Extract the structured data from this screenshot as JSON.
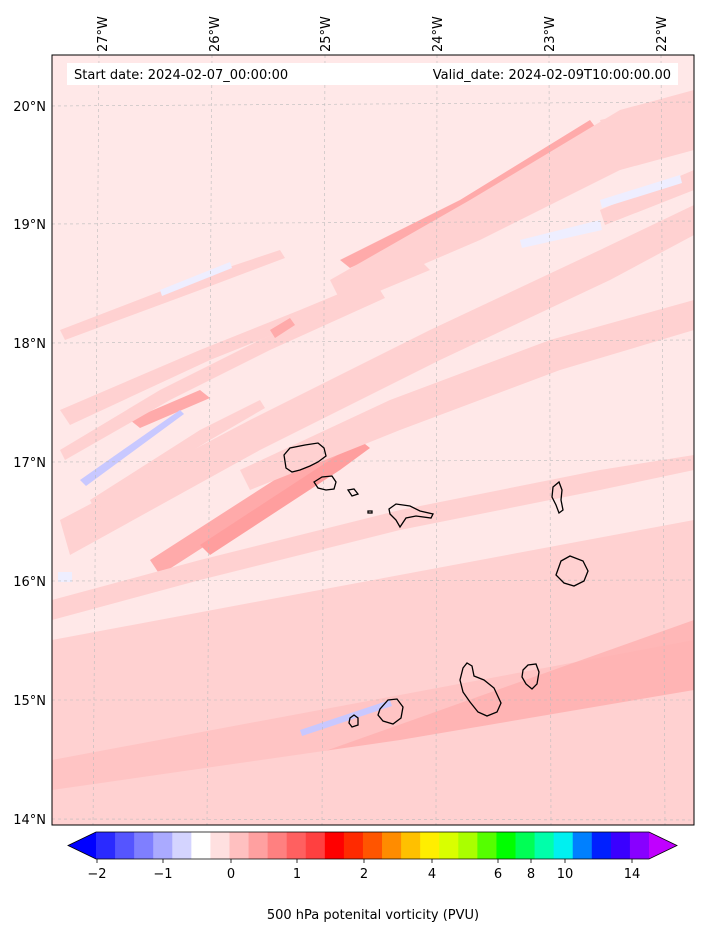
{
  "map": {
    "start_date": "Start date: 2024-02-07_00:00:00",
    "valid_date": "Valid_date: 2024-02-09T10:00:00.00",
    "lon_labels": [
      "27°W",
      "26°W",
      "25°W",
      "24°W",
      "23°W",
      "22°W"
    ],
    "lat_labels": [
      "20°N",
      "19°N",
      "18°N",
      "17°N",
      "16°N",
      "15°N",
      "14°N"
    ],
    "colors": {
      "background": "#ffe8e8",
      "band_light": "#ffd1d1",
      "band_mid": "#ffaaaa",
      "negative_light": "#eeeeff",
      "negative_mid": "#c8c8ff",
      "coast": "#000000"
    }
  },
  "colorbar": {
    "tick_labels": [
      "−2",
      "−1",
      "0",
      "1",
      "2",
      "4",
      "6",
      "8",
      "10",
      "14"
    ],
    "label": "500 hPa potenital vorticity (PVU)",
    "colors": [
      "#0000ff",
      "#2a2aff",
      "#5555ff",
      "#7f7fff",
      "#aaaaff",
      "#d4d4ff",
      "#ffffff",
      "#ffe0e0",
      "#ffc0c0",
      "#ffa0a0",
      "#ff8080",
      "#ff6060",
      "#ff4040",
      "#ff0000",
      "#ff2a00",
      "#ff5500",
      "#ff8c00",
      "#ffc000",
      "#ffee00",
      "#d9ff00",
      "#aaff00",
      "#55ff00",
      "#00ff00",
      "#00ff55",
      "#00ffaa",
      "#00f0f0",
      "#0080ff",
      "#0020ff",
      "#3a00ff",
      "#8800ff",
      "#c000ff"
    ]
  }
}
